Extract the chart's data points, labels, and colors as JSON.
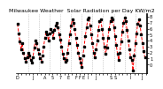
{
  "title": "Milwaukee Weather  Solar Radiation per Day KW/m2",
  "line_color": "#ff0000",
  "dot_color": "#000000",
  "background_color": "#ffffff",
  "grid_color": "#aaaaaa",
  "ylim": [
    -1.5,
    8.5
  ],
  "yticks": [
    0,
    1,
    2,
    3,
    4,
    5,
    6,
    7,
    8
  ],
  "values": [
    6.8,
    5.2,
    3.8,
    2.5,
    3.5,
    2.0,
    1.0,
    0.5,
    1.2,
    2.0,
    1.5,
    0.8,
    0.3,
    1.2,
    2.8,
    4.0,
    3.5,
    2.5,
    1.8,
    1.0,
    0.5,
    1.5,
    3.0,
    4.5,
    5.5,
    5.0,
    4.0,
    5.2,
    6.0,
    5.5,
    4.5,
    5.8,
    6.5,
    7.0,
    6.2,
    5.0,
    4.2,
    3.0,
    1.8,
    1.0,
    0.5,
    0.8,
    2.0,
    3.5,
    5.0,
    6.5,
    7.5,
    7.0,
    6.0,
    4.5,
    3.2,
    2.0,
    1.0,
    0.3,
    -0.5,
    1.5,
    3.0,
    4.8,
    6.2,
    7.5,
    7.8,
    6.5,
    5.0,
    3.5,
    2.0,
    1.2,
    2.5,
    4.0,
    5.8,
    7.2,
    7.5,
    6.0,
    4.5,
    3.0,
    1.8,
    2.8,
    4.5,
    6.0,
    7.2,
    7.8,
    7.5,
    6.2,
    4.8,
    3.2,
    1.8,
    0.8,
    2.0,
    3.8,
    5.5,
    7.0,
    7.8,
    7.2,
    5.8,
    4.0,
    2.5,
    1.2,
    0.8,
    -1.0,
    1.5,
    3.5,
    5.2,
    6.8,
    7.5,
    6.5,
    5.0,
    3.5,
    2.2,
    1.2
  ],
  "x_tick_labels": [
    "D",
    "",
    "",
    "J",
    "",
    "",
    "A",
    "",
    "5",
    "",
    "7",
    "E",
    "",
    "F",
    "F",
    "E",
    "I",
    "",
    "J",
    "",
    "",
    "",
    "S",
    "S",
    "",
    "",
    "",
    "I",
    "",
    "",
    "J",
    "",
    ""
  ],
  "title_fontsize": 4.5,
  "tick_fontsize": 3.5,
  "linewidth": 0.7,
  "markersize": 1.8,
  "num_vlines": 11
}
